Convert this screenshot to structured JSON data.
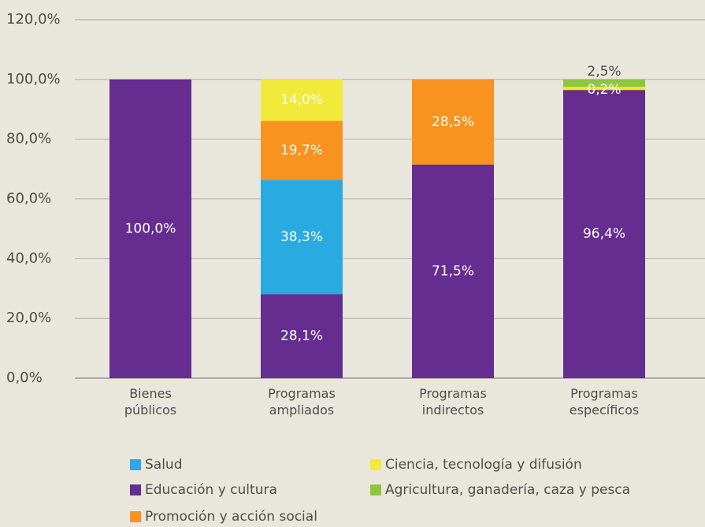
{
  "chart_data": {
    "type": "stacked_bar",
    "categories": [
      "Bienes públicos",
      "Programas ampliados",
      "Programas indirectos",
      "Programas específicos"
    ],
    "series": [
      {
        "name": "Educación y cultura",
        "color": "#662d91",
        "values": [
          100,
          28.1,
          71.5,
          96.4
        ],
        "value_labels": [
          "100,0%",
          "28,1%",
          "71,5%",
          "96,4%"
        ]
      },
      {
        "name": "Salud",
        "color": "#29abe2",
        "values": [
          null,
          38.3,
          null,
          null
        ],
        "value_labels": [
          null,
          "38,3%",
          null,
          null
        ]
      },
      {
        "name": "Promoción y acción social",
        "color": "#f7931e",
        "values": [
          null,
          19.7,
          28.5,
          0.2
        ],
        "value_labels": [
          null,
          "19,7%",
          "28,5%",
          "0,2%"
        ]
      },
      {
        "name": "Ciencia, tecnología y difusión",
        "color": "#f2ea3a",
        "values": [
          null,
          14.0,
          null,
          0.9
        ],
        "value_labels": [
          null,
          "14,0%",
          null,
          null
        ]
      },
      {
        "name": "Agricultura, ganadería, caza y pesca",
        "color": "#8dc63f",
        "values": [
          null,
          null,
          null,
          2.5
        ],
        "value_labels": [
          null,
          null,
          null,
          "2,5%"
        ]
      }
    ],
    "ylim": [
      0,
      120
    ],
    "yticks": [
      {
        "value": 0,
        "label": "0,0%"
      },
      {
        "value": 20,
        "label": "20,0%"
      },
      {
        "value": 40,
        "label": "40,0%"
      },
      {
        "value": 60,
        "label": "60,0%"
      },
      {
        "value": 80,
        "label": "80,0%"
      },
      {
        "value": 100,
        "label": "100,0%"
      },
      {
        "value": 120,
        "label": "120,0%"
      }
    ],
    "grid": true
  }
}
